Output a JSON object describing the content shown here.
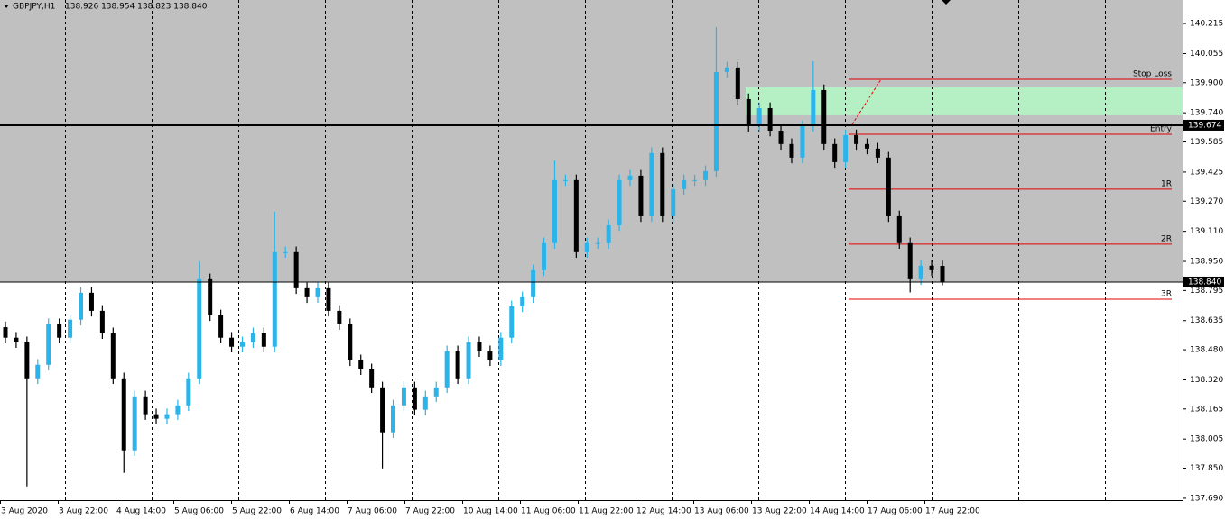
{
  "chart_data": {
    "type": "candlestick",
    "title": "GBPJPY,H1",
    "quote": "138.926 138.954 138.823 138.840",
    "up_color": "#2ab4ea",
    "down_color": "#000000",
    "grid": true,
    "ylim": [
      137.68,
      140.34
    ],
    "yticks": [
      140.215,
      {
        "value": 140.055,
        "label": "140.055"
      },
      {
        "value": 139.9,
        "label": "139.900"
      },
      {
        "value": 139.74,
        "label": "139.740"
      },
      139.585,
      139.425,
      {
        "value": 139.27,
        "label": "139.270"
      },
      {
        "value": 139.11,
        "label": "139.110"
      },
      {
        "value": 138.95,
        "label": "138.950"
      },
      138.795,
      138.635,
      {
        "value": 138.48,
        "label": "138.480"
      },
      {
        "value": 138.32,
        "label": "138.320"
      },
      138.165,
      138.005,
      {
        "value": 137.85,
        "label": "137.850"
      },
      {
        "value": 137.69,
        "label": "137.690"
      }
    ],
    "time_labels": [
      "3 Aug 2020",
      "3 Aug 22:00",
      "4 Aug 14:00",
      "5 Aug 06:00",
      "5 Aug 22:00",
      "6 Aug 14:00",
      "7 Aug 06:00",
      "7 Aug 22:00",
      "10 Aug 14:00",
      "11 Aug 06:00",
      "11 Aug 22:00",
      "12 Aug 14:00",
      "13 Aug 06:00",
      "13 Aug 22:00",
      "14 Aug 14:00",
      "17 Aug 06:00",
      "17 Aug 22:00"
    ],
    "open": [
      138.6,
      138.544,
      138.52,
      138.328,
      138.4,
      138.616,
      138.544,
      138.64,
      138.783,
      138.687,
      138.568,
      138.328,
      137.945,
      138.232,
      138.137,
      138.113,
      138.137,
      138.184,
      138.328,
      138.855,
      138.663,
      138.544,
      138.496,
      138.52,
      138.568,
      138.496,
      138.999,
      138.999,
      138.807,
      138.759,
      138.807,
      138.687,
      138.616,
      138.424,
      138.376,
      138.28,
      138.041,
      138.184,
      138.28,
      138.161,
      138.232,
      138.28,
      138.472,
      138.328,
      138.52,
      138.472,
      138.424,
      138.544,
      138.711,
      138.759,
      138.903,
      139.047,
      139.382,
      139.382,
      138.999,
      139.047,
      139.047,
      139.142,
      139.382,
      139.406,
      139.19,
      139.526,
      139.19,
      139.334,
      139.382,
      139.382,
      139.43,
      139.957,
      139.981,
      139.813,
      139.669,
      139.765,
      139.645,
      139.574,
      139.502,
      139.669,
      139.861,
      139.574,
      139.478,
      139.621,
      139.574,
      139.55,
      139.502,
      139.19,
      139.047,
      138.855,
      138.927,
      138.926
    ],
    "high": [
      138.63,
      138.574,
      138.55,
      138.43,
      138.646,
      138.646,
      138.67,
      138.813,
      138.813,
      138.717,
      138.598,
      138.358,
      138.262,
      138.262,
      138.167,
      138.167,
      138.214,
      138.358,
      138.951,
      138.885,
      138.693,
      138.574,
      138.55,
      138.598,
      138.598,
      139.214,
      139.029,
      139.029,
      138.837,
      138.837,
      138.837,
      138.717,
      138.646,
      138.454,
      138.406,
      138.31,
      138.214,
      138.31,
      138.31,
      138.262,
      138.31,
      138.502,
      138.502,
      138.55,
      138.55,
      138.502,
      138.574,
      138.741,
      138.789,
      138.933,
      139.077,
      139.487,
      139.412,
      139.412,
      139.077,
      139.077,
      139.172,
      139.412,
      139.436,
      139.436,
      139.556,
      139.556,
      139.364,
      139.412,
      139.412,
      139.46,
      140.196,
      140.011,
      140.011,
      139.843,
      139.795,
      139.795,
      139.675,
      139.604,
      139.699,
      140.014,
      139.891,
      139.604,
      139.651,
      139.651,
      139.604,
      139.58,
      139.532,
      139.22,
      139.077,
      138.957,
      138.957,
      138.954
    ],
    "low": [
      138.514,
      138.49,
      137.753,
      138.298,
      138.37,
      138.514,
      138.514,
      138.61,
      138.657,
      138.538,
      138.298,
      137.825,
      137.915,
      138.107,
      138.083,
      138.083,
      138.107,
      138.154,
      138.298,
      138.633,
      138.514,
      138.466,
      138.466,
      138.49,
      138.466,
      138.466,
      138.969,
      138.777,
      138.729,
      138.729,
      138.657,
      138.586,
      138.394,
      138.346,
      138.25,
      137.849,
      138.011,
      138.154,
      138.131,
      138.131,
      138.202,
      138.25,
      138.298,
      138.298,
      138.442,
      138.394,
      138.394,
      138.514,
      138.681,
      138.729,
      138.873,
      139.017,
      139.352,
      138.969,
      138.969,
      139.017,
      139.017,
      139.112,
      139.352,
      139.16,
      139.16,
      139.16,
      139.16,
      139.304,
      139.352,
      139.352,
      139.4,
      139.927,
      139.783,
      139.639,
      139.639,
      139.615,
      139.544,
      139.472,
      139.472,
      139.639,
      139.544,
      139.448,
      139.448,
      139.544,
      139.52,
      139.472,
      139.16,
      139.017,
      138.785,
      138.825,
      138.873,
      138.823
    ],
    "close": [
      138.544,
      138.52,
      138.328,
      138.4,
      138.616,
      138.544,
      138.64,
      138.783,
      138.687,
      138.568,
      138.328,
      137.945,
      138.232,
      138.137,
      138.113,
      138.137,
      138.184,
      138.328,
      138.855,
      138.663,
      138.544,
      138.496,
      138.52,
      138.568,
      138.496,
      138.999,
      138.999,
      138.807,
      138.759,
      138.807,
      138.687,
      138.616,
      138.424,
      138.376,
      138.28,
      138.041,
      138.184,
      138.28,
      138.161,
      138.232,
      138.28,
      138.472,
      138.328,
      138.52,
      138.472,
      138.424,
      138.544,
      138.711,
      138.759,
      138.903,
      139.047,
      139.382,
      139.382,
      138.999,
      139.047,
      139.047,
      139.142,
      139.382,
      139.406,
      139.19,
      139.526,
      139.19,
      139.334,
      139.382,
      139.382,
      139.43,
      139.957,
      139.981,
      139.813,
      139.669,
      139.765,
      139.645,
      139.574,
      139.502,
      139.669,
      139.861,
      139.574,
      139.478,
      139.621,
      139.574,
      139.55,
      139.502,
      139.19,
      139.047,
      138.855,
      138.927,
      138.903,
      138.84
    ],
    "zone": {
      "low": 139.727,
      "high": 139.875,
      "color": "#b5f0c4"
    },
    "levels_color": "#e00000",
    "levels": [
      {
        "name": "Stop Loss",
        "value": 139.918
      },
      {
        "name": "Entry",
        "value": 139.626
      },
      {
        "name": "1R",
        "value": 139.334
      },
      {
        "name": "2R",
        "value": 139.042
      },
      {
        "name": "3R",
        "value": 138.749
      }
    ],
    "price_lines": [
      {
        "value": 139.674,
        "label": "139.674"
      },
      {
        "value": 138.84,
        "label": "138.840"
      }
    ]
  }
}
